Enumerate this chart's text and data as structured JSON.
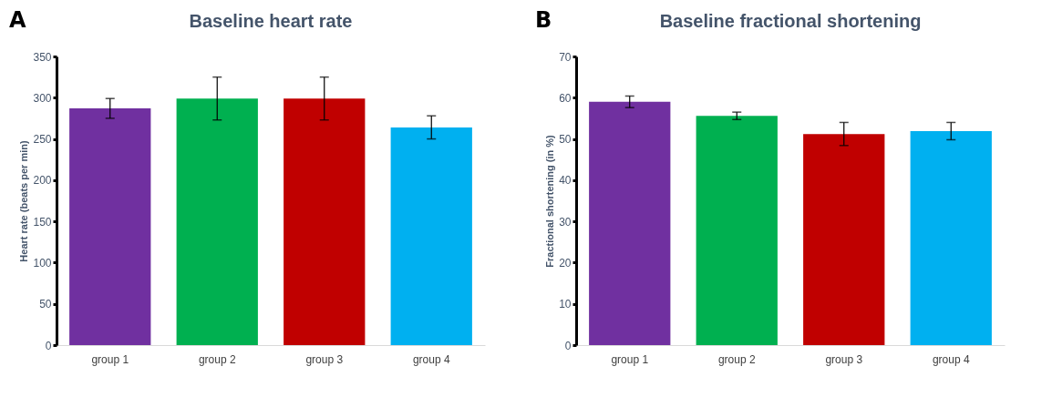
{
  "chart_data": [
    {
      "type": "bar",
      "title": "Baseline heart rate",
      "ylabel": "Heart rate (beats per min)",
      "annotations": [
        "A"
      ],
      "categories": [
        "group 1",
        "group 2",
        "group 3",
        "group 4"
      ],
      "values": [
        287,
        299,
        299,
        264
      ],
      "errors": [
        12,
        26,
        26,
        14
      ],
      "colors": [
        "#7030a0",
        "#00b050",
        "#c00000",
        "#00b0f0"
      ],
      "ylim": [
        0,
        350
      ],
      "yticks": [
        0,
        50,
        100,
        150,
        200,
        250,
        300,
        350
      ],
      "grid": false
    },
    {
      "type": "bar",
      "title": "Baseline fractional shortening",
      "ylabel": "Fractional shortening (in %)",
      "annotations": [
        "B"
      ],
      "categories": [
        "group 1",
        "group 2",
        "group 3",
        "group 4"
      ],
      "values": [
        59,
        55.6,
        51.2,
        51.9
      ],
      "errors": [
        1.4,
        0.9,
        2.8,
        2.1
      ],
      "colors": [
        "#7030a0",
        "#00b050",
        "#c00000",
        "#00b0f0"
      ],
      "ylim": [
        0,
        70
      ],
      "yticks": [
        0,
        10,
        20,
        30,
        40,
        50,
        60,
        70
      ],
      "grid": false
    }
  ]
}
